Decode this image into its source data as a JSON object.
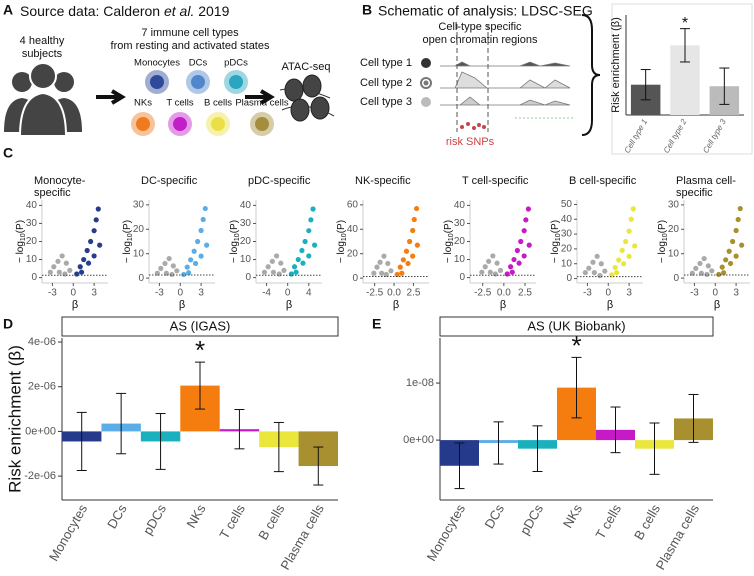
{
  "panel_a": {
    "label": "A",
    "title_parts": [
      "Source data: Calderon ",
      "et al.",
      " 2019"
    ],
    "subjects": [
      "4 healthy",
      "subjects"
    ],
    "cell_heading": [
      "7 immune cell types",
      "from resting and activated states"
    ],
    "cells": [
      {
        "name": "Monocytes",
        "color": "#2f4a9a"
      },
      {
        "name": "DCs",
        "color": "#4f86cc"
      },
      {
        "name": "pDCs",
        "color": "#2aa5c0"
      },
      {
        "name": "NKs",
        "color": "#f07a1e"
      },
      {
        "name": "T cells",
        "color": "#c31fc9"
      },
      {
        "name": "B cells",
        "color": "#eadf45"
      },
      {
        "name": "Plasma cells",
        "color": "#a48d3d"
      }
    ],
    "assay": "ATAC-seq"
  },
  "panel_b": {
    "label": "B",
    "title": "Schematic of analysis: LDSC-SEG",
    "header": [
      "Cell-type specific",
      "open chromatin regions"
    ],
    "rows": [
      "Cell type 1",
      "Cell type 2",
      "Cell type 3"
    ],
    "snps": "risk SNPs"
  },
  "panel_c": {
    "label": "C"
  },
  "panel_d": {
    "label": "D"
  },
  "panel_e": {
    "label": "E"
  },
  "chart_data": [
    {
      "type": "bar",
      "ylabel": "Risk enrichment (β)",
      "categories": [
        "Cell type 1",
        "Cell type 2",
        "Cell type 3"
      ],
      "values": [
        1.0,
        2.3,
        0.95
      ],
      "errors": [
        0.5,
        0.55,
        0.6
      ],
      "colors": [
        "#555555",
        "#e6e6e6",
        "#bbbbbb"
      ],
      "ylim": [
        0,
        3.3
      ],
      "annotations": [
        {
          "text": "*",
          "category": "Cell type 2"
        }
      ]
    },
    {
      "type": "scatter",
      "title": [
        "Monocyte-",
        "specific"
      ],
      "ylabel_parts": [
        "− log",
        "10",
        "(P)"
      ],
      "xlabel": "β",
      "xlim": [
        -4.5,
        5
      ],
      "ylim": [
        -3,
        43
      ],
      "xticks": [
        -3,
        0,
        3
      ],
      "yticks": [
        0,
        10,
        20,
        30,
        40
      ],
      "threshold": 1.3,
      "series": [
        {
          "color": "#aaaaaa",
          "x": [
            -3.3,
            -2.8,
            -2.2,
            -1.6,
            -1,
            -0.5,
            -2,
            -1.2
          ],
          "y": [
            3,
            6,
            9,
            12,
            8,
            4,
            3,
            2
          ]
        },
        {
          "color": "#283c8c",
          "x": [
            0.5,
            1,
            1.5,
            2,
            2.5,
            3,
            3.3,
            3.6,
            2.2,
            3,
            1.2,
            3.8
          ],
          "y": [
            2,
            6,
            10,
            15,
            20,
            26,
            32,
            38,
            8,
            12,
            3,
            18
          ]
        }
      ]
    },
    {
      "type": "scatter",
      "title": [
        "DC-specific"
      ],
      "ylabel_parts": [
        "− log",
        "10",
        "(P)"
      ],
      "xlabel": "β",
      "xlim": [
        -4.5,
        5
      ],
      "ylim": [
        -2,
        32
      ],
      "xticks": [
        -3,
        0,
        3
      ],
      "yticks": [
        0,
        10,
        20,
        30
      ],
      "threshold": 1.3,
      "series": [
        {
          "color": "#aaaaaa",
          "x": [
            -3.3,
            -2.8,
            -2.2,
            -1.6,
            -1,
            -0.5,
            -2,
            -1.2
          ],
          "y": [
            2,
            4,
            6,
            8,
            5,
            3,
            2,
            1.5
          ]
        },
        {
          "color": "#5aade6",
          "x": [
            0.5,
            1,
            1.5,
            2,
            2.5,
            3,
            3.3,
            3.6,
            2.2,
            3,
            1.2,
            3.8
          ],
          "y": [
            1.5,
            4.5,
            7.5,
            11,
            15,
            19.5,
            24,
            28.5,
            6,
            9,
            2.2,
            13.5
          ]
        }
      ]
    },
    {
      "type": "scatter",
      "title": [
        "pDC-specific"
      ],
      "ylabel_parts": [
        "− log",
        "10",
        "(P)"
      ],
      "xlabel": "β",
      "xlim": [
        -6,
        6.5
      ],
      "ylim": [
        -3,
        43
      ],
      "xticks": [
        -4,
        0,
        4
      ],
      "yticks": [
        0,
        10,
        20,
        30,
        40
      ],
      "threshold": 1.3,
      "series": [
        {
          "color": "#aaaaaa",
          "x": [
            -4.4,
            -3.7,
            -2.9,
            -2.1,
            -1.3,
            -0.7,
            -2.7,
            -1.6
          ],
          "y": [
            3,
            6,
            9,
            12,
            8,
            4,
            3,
            2
          ]
        },
        {
          "color": "#1ab0bd",
          "x": [
            0.7,
            1.3,
            2,
            2.7,
            3.3,
            4,
            4.4,
            4.8,
            2.9,
            4,
            1.6,
            5.1
          ],
          "y": [
            2,
            6,
            10,
            15,
            20,
            26,
            32,
            38,
            8,
            12,
            3,
            18
          ]
        }
      ]
    },
    {
      "type": "scatter",
      "title": [
        "NK-specific"
      ],
      "ylabel_parts": [
        "− log",
        "10",
        "(P)"
      ],
      "xlabel": "β",
      "xlim": [
        -4,
        4.5
      ],
      "ylim": [
        -4,
        64
      ],
      "xticks": [
        -2.5,
        {
          "value": 0,
          "label": "0.0"
        },
        2.5
      ],
      "yticks": [
        0,
        20,
        40,
        60
      ],
      "threshold": 1.3,
      "series": [
        {
          "color": "#aaaaaa",
          "x": [
            -2.6,
            -2.2,
            -1.8,
            -1.3,
            -0.8,
            -0.4,
            -1.6,
            -1
          ],
          "y": [
            4,
            9,
            13,
            18,
            12,
            6,
            4,
            3
          ]
        },
        {
          "color": "#f57d0f",
          "x": [
            0.4,
            0.8,
            1.2,
            1.6,
            2,
            2.4,
            2.6,
            2.9,
            1.8,
            2.4,
            1,
            3
          ],
          "y": [
            3,
            9,
            15,
            22,
            30,
            39,
            48,
            57,
            12,
            18,
            4,
            27
          ]
        }
      ]
    },
    {
      "type": "scatter",
      "title": [
        "T cell-specific"
      ],
      "ylabel_parts": [
        "− log",
        "10",
        "(P)"
      ],
      "xlabel": "β",
      "xlim": [
        -4,
        3.8
      ],
      "ylim": [
        -3,
        43
      ],
      "xticks": [
        -2.5,
        {
          "value": 0,
          "label": "0.0"
        },
        2.5
      ],
      "yticks": [
        0,
        10,
        20,
        30,
        40
      ],
      "threshold": 1.3,
      "series": [
        {
          "color": "#aaaaaa",
          "x": [
            -2.6,
            -2.2,
            -1.8,
            -1.3,
            -0.8,
            -0.4,
            -1.6,
            -1
          ],
          "y": [
            3,
            6,
            9,
            12,
            8,
            4,
            3,
            2
          ]
        },
        {
          "color": "#c71ac7",
          "x": [
            0.4,
            0.8,
            1.2,
            1.6,
            2,
            2.4,
            2.6,
            2.9,
            1.8,
            2.4,
            1,
            3
          ],
          "y": [
            2,
            6,
            10,
            15,
            20,
            26,
            32,
            38,
            8,
            12,
            3,
            18
          ]
        }
      ]
    },
    {
      "type": "scatter",
      "title": [
        "B cell-specific"
      ],
      "ylabel_parts": [
        "− log",
        "10",
        "(P)"
      ],
      "xlabel": "β",
      "xlim": [
        -4.5,
        5
      ],
      "ylim": [
        -3,
        53
      ],
      "xticks": [
        -3,
        0,
        3
      ],
      "yticks": [
        0,
        10,
        20,
        30,
        40,
        50
      ],
      "threshold": 1.3,
      "series": [
        {
          "color": "#aaaaaa",
          "x": [
            -3.3,
            -2.8,
            -2.2,
            -1.6,
            -1,
            -0.5,
            -2,
            -1.2
          ],
          "y": [
            4,
            7,
            11,
            15,
            10,
            5,
            4,
            2
          ]
        },
        {
          "color": "#ebe63c",
          "x": [
            0.5,
            1,
            1.5,
            2,
            2.5,
            3,
            3.3,
            3.6,
            2.2,
            3,
            1.2,
            3.8
          ],
          "y": [
            2.5,
            7.5,
            12.5,
            19,
            25,
            32,
            40,
            47,
            10,
            15,
            4,
            22
          ]
        }
      ]
    },
    {
      "type": "scatter",
      "title": [
        "Plasma cell-",
        "specific"
      ],
      "ylabel_parts": [
        "− log",
        "10",
        "(P)"
      ],
      "xlabel": "β",
      "xlim": [
        -4.5,
        5
      ],
      "ylim": [
        -2,
        32
      ],
      "xticks": [
        -3,
        0,
        3
      ],
      "yticks": [
        0,
        10,
        20,
        30
      ],
      "threshold": 1.3,
      "series": [
        {
          "color": "#aaaaaa",
          "x": [
            -3.3,
            -2.8,
            -2.2,
            -1.6,
            -1,
            -0.5,
            -2,
            -1.2
          ],
          "y": [
            2,
            4,
            6,
            8,
            5,
            3,
            2,
            1.5
          ]
        },
        {
          "color": "#a89030",
          "x": [
            0.5,
            1,
            1.5,
            2,
            2.5,
            3,
            3.3,
            3.6,
            2.2,
            3,
            1.2,
            3.8
          ],
          "y": [
            1.5,
            4.5,
            7.5,
            11,
            15,
            19.5,
            24,
            28.5,
            6,
            9,
            2.2,
            13.5
          ]
        }
      ]
    },
    {
      "type": "bar",
      "strip": "AS (IGAS)",
      "ylabel": "Risk enrichment (β)",
      "categories": [
        "Monocytes",
        "DCs",
        "pDCs",
        "NKs",
        "T cells",
        "B cells",
        "Plasma cells"
      ],
      "values": [
        -4.5e-07,
        3.5e-07,
        -4.5e-07,
        2.05e-06,
        1e-07,
        -7e-07,
        -1.55e-06
      ],
      "errors": [
        1.3e-06,
        1.35e-06,
        1.25e-06,
        1.05e-06,
        8.8e-07,
        1.1e-06,
        8.5e-07
      ],
      "colors": [
        "#253a8a",
        "#5aade6",
        "#1ab0bd",
        "#f57d0f",
        "#c71ac7",
        "#ebe63c",
        "#a89030"
      ],
      "ylim": [
        -3.07e-06,
        4.18e-06
      ],
      "yticks": [
        {
          "value": 4e-06,
          "label": "4e-06"
        },
        {
          "value": 2e-06,
          "label": "2e-06"
        },
        {
          "value": 0,
          "label": "0e+00"
        },
        {
          "value": -2e-06,
          "label": "-2e-06"
        }
      ],
      "annotations": [
        {
          "text": "*",
          "category": "NKs"
        }
      ]
    },
    {
      "type": "bar",
      "strip": "AS (UK Biobank)",
      "categories": [
        "Monocytes",
        "DCs",
        "pDCs",
        "NKs",
        "T cells",
        "B cells",
        "Plasma cells"
      ],
      "values": [
        -4.5e-09,
        -5e-10,
        -1.5e-09,
        9.2e-09,
        1.8e-09,
        -1.5e-09,
        3.8e-09
      ],
      "errors": [
        4e-09,
        3.7e-09,
        4e-09,
        5.3e-09,
        4e-09,
        4.5e-09,
        4.2e-09
      ],
      "colors": [
        "#253a8a",
        "#5aade6",
        "#1ab0bd",
        "#f57d0f",
        "#c71ac7",
        "#ebe63c",
        "#a89030"
      ],
      "ylim": [
        -1.05e-08,
        1.79e-08
      ],
      "yticks": [
        {
          "value": 1e-08,
          "label": "1e-08"
        },
        {
          "value": 0,
          "label": "0e+00"
        }
      ],
      "annotations": [
        {
          "text": "*",
          "category": "NKs"
        }
      ]
    }
  ]
}
